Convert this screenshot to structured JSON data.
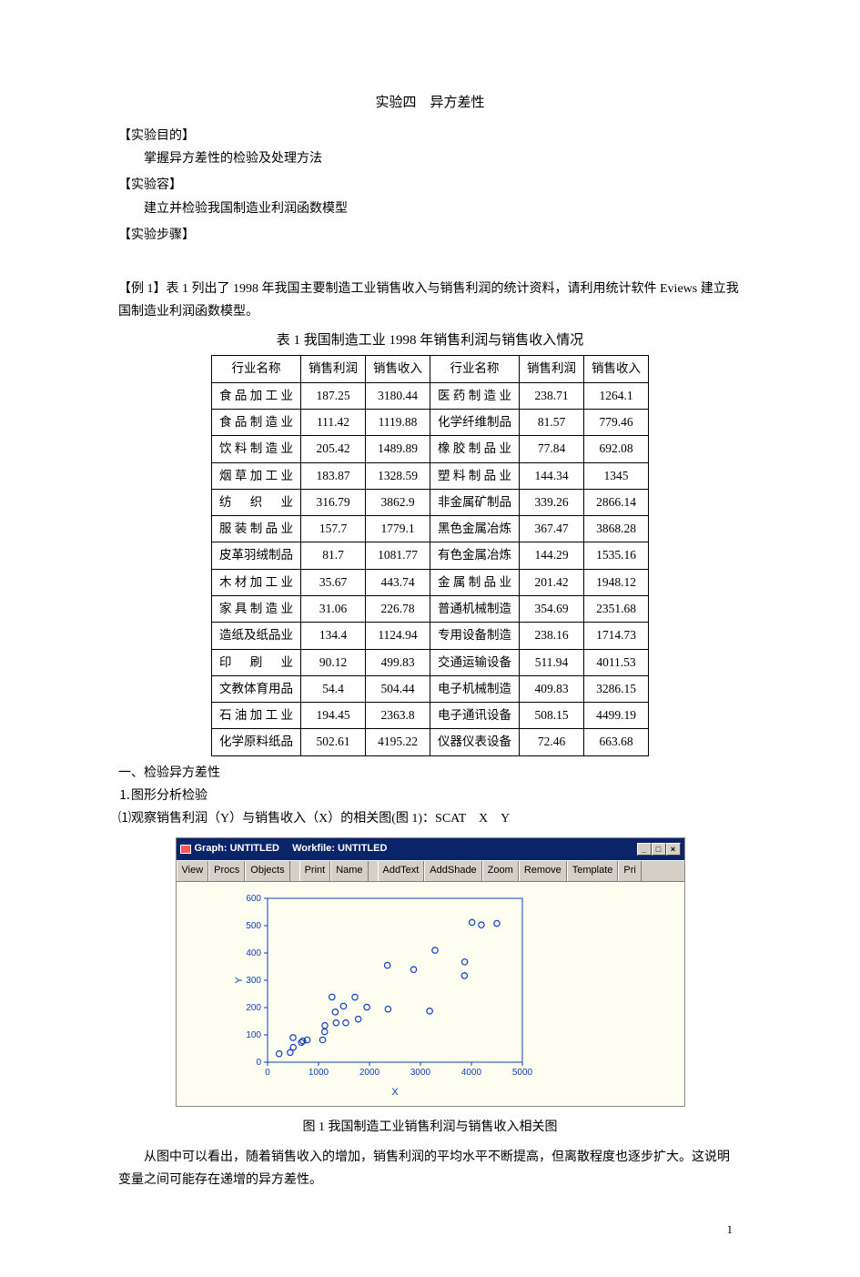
{
  "title": "实验四　异方差性",
  "labels": {
    "purpose": "【实验目的】",
    "purpose_text": "掌握异方差性的检验及处理方法",
    "content": "【实验容】",
    "content_text": "建立并检验我国制造业利润函数模型",
    "steps": "【实验步骤】"
  },
  "example_para": "【例 1】表 1 列出了 1998 年我国主要制造工业销售收入与销售利润的统计资料，请利用统计软件 Eviews 建立我国制造业利润函数模型。",
  "table_caption": "表 1  我国制造工业 1998 年销售利润与销售收入情况",
  "table": {
    "headers": [
      "行业名称",
      "销售利润",
      "销售收入",
      "行业名称",
      "销售利润",
      "销售收入"
    ],
    "rows": [
      [
        "食品加工业",
        "187.25",
        "3180.44",
        "医药制造业",
        "238.71",
        "1264.1"
      ],
      [
        "食品制造业",
        "111.42",
        "1119.88",
        "化学纤维制品",
        "81.57",
        "779.46"
      ],
      [
        "饮料制造业",
        "205.42",
        "1489.89",
        "橡胶制品业",
        "77.84",
        "692.08"
      ],
      [
        "烟草加工业",
        "183.87",
        "1328.59",
        "塑料制品业",
        "144.34",
        "1345"
      ],
      [
        "纺织业",
        "316.79",
        "3862.9",
        "非金属矿制品",
        "339.26",
        "2866.14"
      ],
      [
        "服装制品业",
        "157.7",
        "1779.1",
        "黑色金属冶炼",
        "367.47",
        "3868.28"
      ],
      [
        "皮革羽绒制品",
        "81.7",
        "1081.77",
        "有色金属冶炼",
        "144.29",
        "1535.16"
      ],
      [
        "木材加工业",
        "35.67",
        "443.74",
        "金属制品业",
        "201.42",
        "1948.12"
      ],
      [
        "家具制造业",
        "31.06",
        "226.78",
        "普通机械制造",
        "354.69",
        "2351.68"
      ],
      [
        "造纸及纸品业",
        "134.4",
        "1124.94",
        "专用设备制造",
        "238.16",
        "1714.73"
      ],
      [
        "印刷业",
        "90.12",
        "499.83",
        "交通运输设备",
        "511.94",
        "4011.53"
      ],
      [
        "文教体育用品",
        "54.4",
        "504.44",
        "电子机械制造",
        "409.83",
        "3286.15"
      ],
      [
        "石油加工业",
        "194.45",
        "2363.8",
        "电子通讯设备",
        "508.15",
        "4499.19"
      ],
      [
        "化学原料纸品",
        "502.61",
        "4195.22",
        "仪器仪表设备",
        "72.46",
        "663.68"
      ]
    ]
  },
  "section1": "一、检验异方差性",
  "section1_1": "⒈图形分析检验",
  "section1_1_1": "⑴观察销售利润（Y）与销售收入（X）的相关图(图 1)：SCAT　X　Y",
  "eviews": {
    "title_a": "Graph: UNTITLED",
    "title_b": "Workfile: UNTITLED",
    "toolbar": [
      "View",
      "Procs",
      "Objects",
      "Print",
      "Name",
      "AddText",
      "AddShade",
      "Zoom",
      "Remove",
      "Template",
      "Pri"
    ],
    "winbtns": [
      "_",
      "□",
      "×"
    ],
    "y_ticks": [
      0,
      100,
      200,
      300,
      400,
      500,
      600
    ],
    "x_ticks": [
      0,
      1000,
      2000,
      3000,
      4000,
      5000
    ],
    "xlabel": "X",
    "ylabel": "Y",
    "xlim": [
      0,
      5000
    ],
    "ylim": [
      0,
      600
    ],
    "marker_color": "#1040c0",
    "marker_size": 3.2,
    "bg": "#fdfdf0",
    "axis_color": "#1040c0",
    "tick_font": 10,
    "points": [
      [
        3180.44,
        187.25
      ],
      [
        1119.88,
        111.42
      ],
      [
        1489.89,
        205.42
      ],
      [
        1328.59,
        183.87
      ],
      [
        3862.9,
        316.79
      ],
      [
        1779.1,
        157.7
      ],
      [
        1081.77,
        81.7
      ],
      [
        443.74,
        35.67
      ],
      [
        226.78,
        31.06
      ],
      [
        1124.94,
        134.4
      ],
      [
        499.83,
        90.12
      ],
      [
        504.44,
        54.4
      ],
      [
        2363.8,
        194.45
      ],
      [
        4195.22,
        502.61
      ],
      [
        1264.1,
        238.71
      ],
      [
        779.46,
        81.57
      ],
      [
        692.08,
        77.84
      ],
      [
        1345,
        144.34
      ],
      [
        2866.14,
        339.26
      ],
      [
        3868.28,
        367.47
      ],
      [
        1535.16,
        144.29
      ],
      [
        1948.12,
        201.42
      ],
      [
        2351.68,
        354.69
      ],
      [
        1714.73,
        238.16
      ],
      [
        4011.53,
        511.94
      ],
      [
        3286.15,
        409.83
      ],
      [
        4499.19,
        508.15
      ],
      [
        663.68,
        72.46
      ]
    ]
  },
  "fig_caption": "图 1  我国制造工业销售利润与销售收入相关图",
  "conclusion": "从图中可以看出，随着销售收入的增加，销售利润的平均水平不断提高，但离散程度也逐步扩大。这说明变量之间可能存在递增的异方差性。",
  "page_num": "1"
}
